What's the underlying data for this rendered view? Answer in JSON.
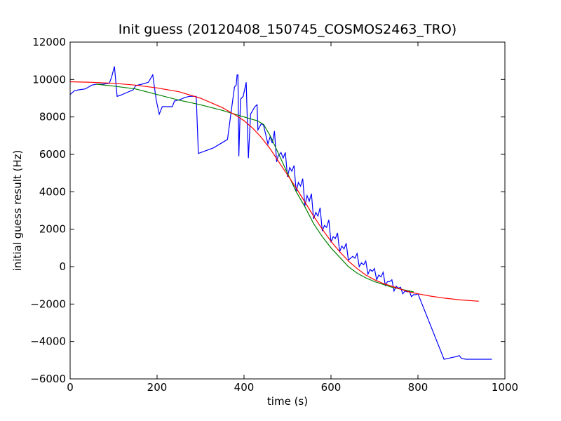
{
  "chart_data": {
    "type": "line",
    "title": "Init guess (20120408_150745_COSMOS2463_TRO)",
    "xlabel": "time (s)",
    "ylabel": "initial guess result (Hz)",
    "xlim": [
      0,
      1000
    ],
    "ylim": [
      -6000,
      12000
    ],
    "xticks": [
      0,
      200,
      400,
      600,
      800,
      1000
    ],
    "yticks": [
      -6000,
      -4000,
      -2000,
      0,
      2000,
      4000,
      6000,
      8000,
      10000,
      12000
    ],
    "grid": false,
    "legend": "none",
    "series": [
      {
        "color": "#0000ff",
        "x": [
          0,
          10,
          20,
          35,
          50,
          60,
          75,
          90,
          95,
          102,
          108,
          115,
          130,
          140,
          145,
          150,
          155,
          165,
          180,
          190,
          198,
          205,
          212,
          220,
          235,
          240,
          248,
          255,
          265,
          275,
          290,
          295,
          330,
          362,
          372,
          378,
          382,
          384,
          386,
          388,
          392,
          398,
          405,
          410,
          415,
          425,
          430,
          432,
          440,
          445,
          455,
          460,
          465,
          470,
          475,
          478,
          485,
          490,
          495,
          500,
          505,
          510,
          515,
          520,
          525,
          530,
          535,
          540,
          545,
          550,
          555,
          560,
          565,
          570,
          575,
          580,
          585,
          590,
          595,
          600,
          605,
          610,
          615,
          620,
          625,
          630,
          635,
          640,
          650,
          655,
          660,
          665,
          670,
          675,
          680,
          685,
          690,
          695,
          700,
          705,
          710,
          715,
          720,
          725,
          730,
          735,
          740,
          745,
          750,
          755,
          760,
          765,
          770,
          775,
          780,
          785,
          790,
          795,
          800,
          860,
          870,
          880,
          890,
          895,
          900,
          910,
          920,
          940,
          960,
          970
        ],
        "y": [
          9200,
          9400,
          9450,
          9500,
          9700,
          9750,
          9750,
          9800,
          10100,
          10700,
          9100,
          9150,
          9300,
          9400,
          9450,
          9650,
          9700,
          9750,
          9850,
          10250,
          8900,
          8150,
          8550,
          8550,
          8550,
          8850,
          8900,
          8950,
          9050,
          9100,
          9100,
          6050,
          6350,
          6800,
          8550,
          9600,
          9700,
          10250,
          10250,
          5900,
          8950,
          9100,
          9850,
          5800,
          8150,
          8550,
          8650,
          7300,
          7650,
          7550,
          6550,
          6950,
          6600,
          7250,
          5600,
          5900,
          6100,
          5800,
          6100,
          4800,
          5300,
          5100,
          5400,
          4000,
          4500,
          4300,
          4700,
          3250,
          3800,
          3500,
          3900,
          2550,
          2900,
          2700,
          3150,
          1900,
          2200,
          2100,
          2500,
          1300,
          1600,
          1500,
          1800,
          800,
          1100,
          950,
          1250,
          350,
          550,
          450,
          700,
          0,
          200,
          100,
          300,
          -400,
          -150,
          -250,
          -100,
          -700,
          -450,
          -550,
          -300,
          -1000,
          -800,
          -800,
          -700,
          -1300,
          -1050,
          -1150,
          -1100,
          -1450,
          -1300,
          -1350,
          -1300,
          -1600,
          -1500,
          -1500,
          -1450,
          -4950,
          -4900,
          -4850,
          -4800,
          -4750,
          -4900,
          -4950,
          -4950,
          -4950,
          -4950,
          -4950
        ]
      },
      {
        "color": "#008000",
        "x": [
          60,
          100,
          150,
          200,
          250,
          300,
          350,
          400,
          430,
          445,
          460,
          480,
          500,
          520,
          540,
          560,
          580,
          600,
          620,
          640,
          660,
          680,
          700,
          720,
          740,
          760,
          780,
          790
        ],
        "y": [
          9750,
          9650,
          9500,
          9200,
          8900,
          8650,
          8350,
          8000,
          7800,
          7600,
          7000,
          6000,
          5000,
          4000,
          3200,
          2300,
          1600,
          1000,
          500,
          0,
          -350,
          -600,
          -800,
          -950,
          -1100,
          -1200,
          -1300,
          -1350
        ]
      },
      {
        "color": "#ff0000",
        "x": [
          0,
          50,
          100,
          150,
          200,
          250,
          300,
          350,
          380,
          400,
          420,
          440,
          460,
          480,
          500,
          520,
          540,
          560,
          580,
          600,
          620,
          640,
          660,
          680,
          700,
          720,
          740,
          760,
          780,
          800,
          830,
          860,
          900,
          940
        ],
        "y": [
          9880,
          9850,
          9800,
          9700,
          9550,
          9350,
          9000,
          8500,
          8100,
          7800,
          7400,
          6900,
          6300,
          5600,
          4900,
          4200,
          3450,
          2700,
          2000,
          1350,
          800,
          300,
          -100,
          -450,
          -700,
          -900,
          -1050,
          -1200,
          -1350,
          -1450,
          -1580,
          -1680,
          -1780,
          -1850
        ]
      }
    ]
  }
}
